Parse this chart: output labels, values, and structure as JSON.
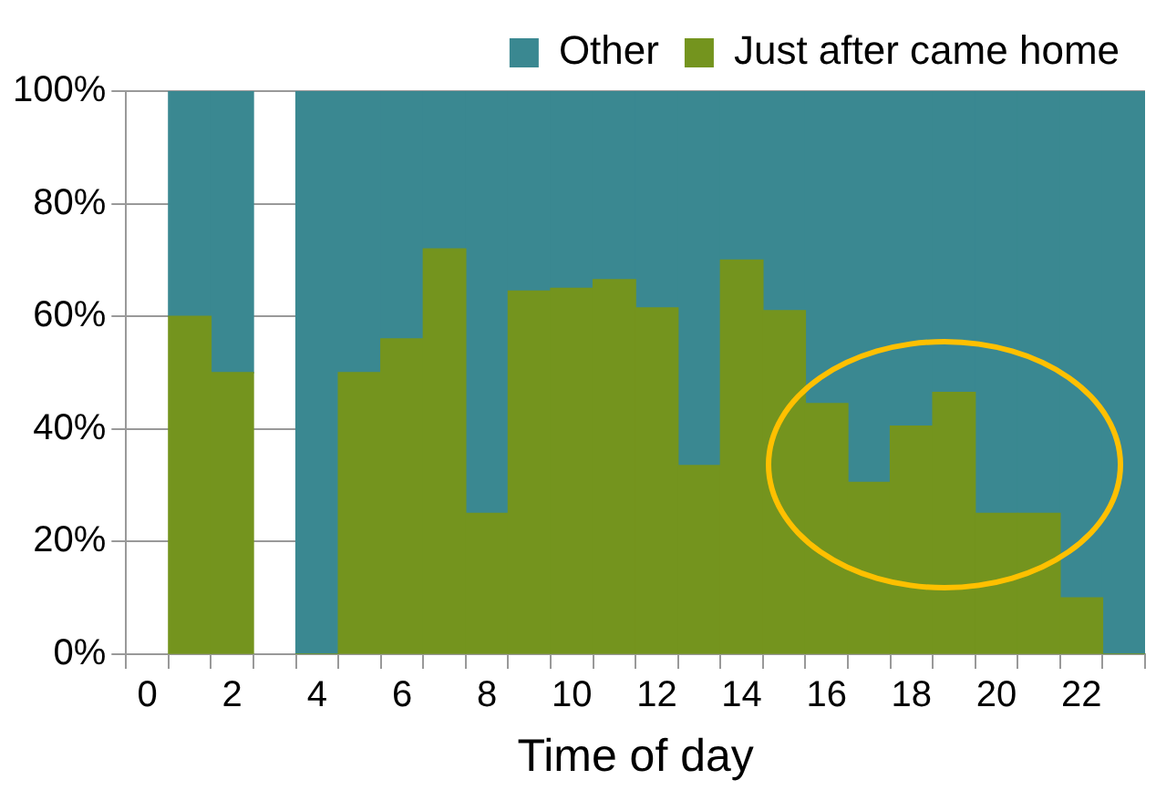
{
  "chart_data": {
    "type": "bar",
    "stacked": true,
    "xlabel": "Time of day",
    "categories": [
      "0",
      null,
      "2",
      null,
      "4",
      null,
      "6",
      null,
      "8",
      null,
      "10",
      null,
      "12",
      null,
      "14",
      null,
      "16",
      null,
      "18",
      null,
      "20",
      null,
      "22",
      null
    ],
    "series": [
      {
        "name": "Just after came home",
        "color": "#74941e",
        "values": [
          null,
          60,
          50,
          null,
          0,
          50,
          56,
          72,
          25,
          64.5,
          65,
          66.5,
          61.5,
          33.5,
          70,
          61,
          44.5,
          30.5,
          40.5,
          46.5,
          25,
          25,
          10,
          0
        ]
      },
      {
        "name": "Other",
        "color": "#3a8891",
        "values": [
          null,
          40,
          50,
          null,
          100,
          50,
          44,
          28,
          75,
          35.5,
          35,
          33.5,
          38.5,
          66.5,
          30,
          39,
          55.5,
          69.5,
          59.5,
          53.5,
          75,
          75,
          90,
          100
        ]
      }
    ],
    "ylim": [
      0,
      100
    ],
    "yticks": [
      {
        "value": 0,
        "label": "0%"
      },
      {
        "value": 20,
        "label": "20%"
      },
      {
        "value": 40,
        "label": "40%"
      },
      {
        "value": 60,
        "label": "60%"
      },
      {
        "value": 80,
        "label": "80%"
      },
      {
        "value": 100,
        "label": "100%"
      }
    ],
    "grid": "y",
    "legend": "top right"
  }
}
